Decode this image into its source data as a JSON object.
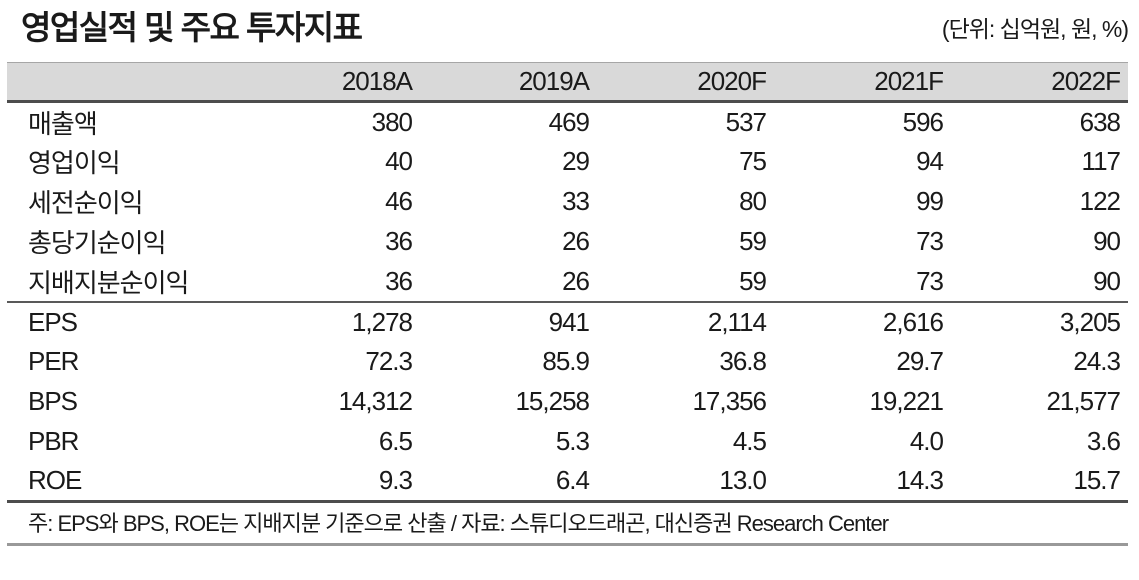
{
  "page": {
    "title": "영업실적 및 주요 투자지표",
    "unit_note": "(단위: 십억원, 원, %)"
  },
  "table": {
    "year_columns": [
      "2018A",
      "2019A",
      "2020F",
      "2021F",
      "2022F"
    ],
    "sections": [
      {
        "name": "earnings",
        "rows": [
          {
            "label": "매출액",
            "values": [
              "380",
              "469",
              "537",
              "596",
              "638"
            ]
          },
          {
            "label": "영업이익",
            "values": [
              "40",
              "29",
              "75",
              "94",
              "117"
            ]
          },
          {
            "label": "세전순이익",
            "values": [
              "46",
              "33",
              "80",
              "99",
              "122"
            ]
          },
          {
            "label": "총당기순이익",
            "values": [
              "36",
              "26",
              "59",
              "73",
              "90"
            ]
          },
          {
            "label": "지배지분순이익",
            "values": [
              "36",
              "26",
              "59",
              "73",
              "90"
            ]
          }
        ]
      },
      {
        "name": "valuation",
        "rows": [
          {
            "label": "EPS",
            "values": [
              "1,278",
              "941",
              "2,114",
              "2,616",
              "3,205"
            ]
          },
          {
            "label": "PER",
            "values": [
              "72.3",
              "85.9",
              "36.8",
              "29.7",
              "24.3"
            ]
          },
          {
            "label": "BPS",
            "values": [
              "14,312",
              "15,258",
              "17,356",
              "19,221",
              "21,577"
            ]
          },
          {
            "label": "PBR",
            "values": [
              "6.5",
              "5.3",
              "4.5",
              "4.0",
              "3.6"
            ]
          },
          {
            "label": "ROE",
            "values": [
              "9.3",
              "6.4",
              "13.0",
              "14.3",
              "15.7"
            ]
          }
        ]
      }
    ],
    "footnote": "주: EPS와 BPS, ROE는 지배지분 기준으로 산출 / 자료: 스튜디오드래곤, 대신증권 Research Center"
  },
  "colors": {
    "header_bg": "#d9d9d9",
    "text": "#1a1a1a",
    "rule_dark": "#4d4d4d",
    "rule_mid": "#595959",
    "rule_light": "#999999"
  }
}
